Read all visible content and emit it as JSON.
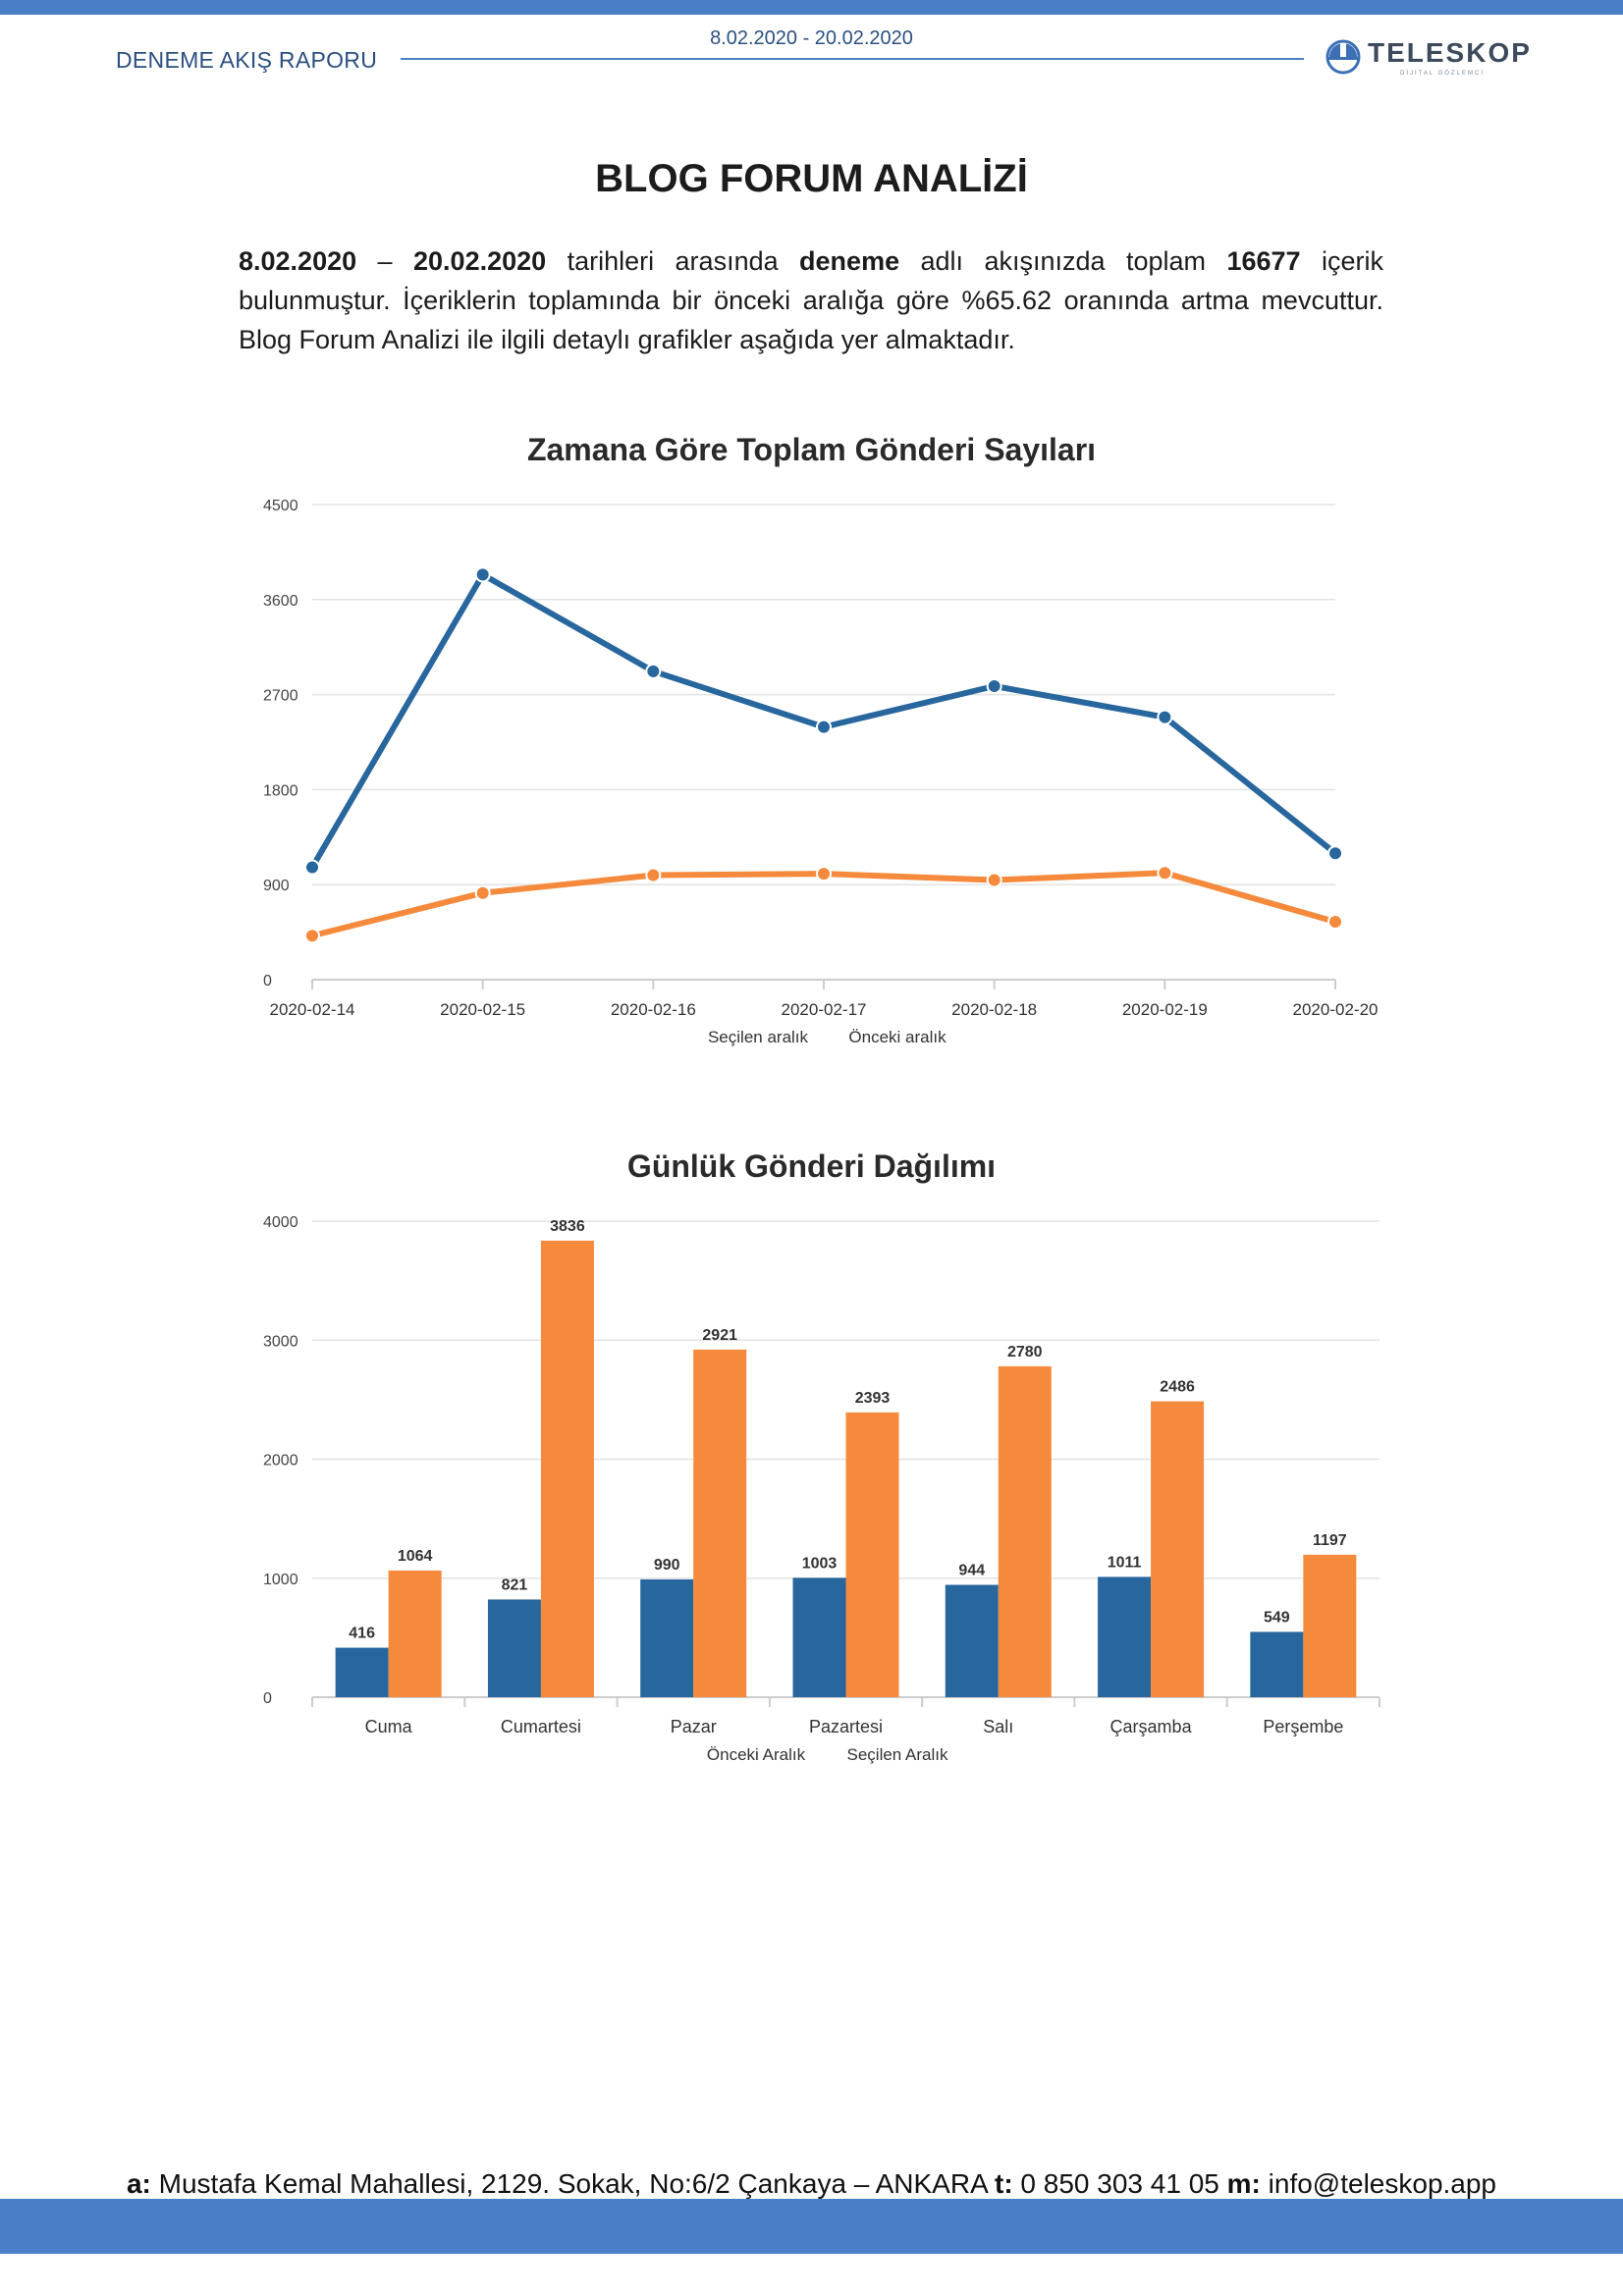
{
  "header": {
    "date_range": "8.02.2020 - 20.02.2020",
    "report_name": "DENEME AKIŞ RAPORU",
    "logo_text": "TELESKOP",
    "logo_subtext": "DİJİTAL GÖZLEMCİ"
  },
  "page": {
    "title": "BLOG FORUM ANALİZİ"
  },
  "intro": {
    "start_date": "8.02.2020",
    "dash": " – ",
    "end_date": "20.02.2020",
    "text_1": " tarihleri arasında ",
    "stream_name": "deneme",
    "text_2": " adlı akışınızda toplam ",
    "total": "16677",
    "text_3": " içerik bulunmuştur. İçeriklerin toplamında bir önceki aralığa göre %65.62 oranında artma mevcuttur. Blog Forum Analizi ile ilgili detaylı grafikler aşağıda yer almaktadır."
  },
  "chart_data": [
    {
      "type": "line",
      "title": "Zamana Göre Toplam Gönderi Sayıları",
      "x": [
        "2020-02-14",
        "2020-02-15",
        "2020-02-16",
        "2020-02-17",
        "2020-02-18",
        "2020-02-19",
        "2020-02-20"
      ],
      "y_ticks": [
        "0",
        "900",
        "1800",
        "2700",
        "3600",
        "4500"
      ],
      "ylim": [
        0,
        4500
      ],
      "grid": true,
      "legend_position": "bottom",
      "series": [
        {
          "name": "Seçilen aralık",
          "color": "#28669e",
          "values": [
            1064,
            3836,
            2921,
            2393,
            2780,
            2486,
            1197
          ]
        },
        {
          "name": "Önceki aralık",
          "color": "#f58a3c",
          "values": [
            416,
            821,
            990,
            1003,
            944,
            1011,
            549
          ]
        }
      ]
    },
    {
      "type": "bar",
      "title": "Günlük Gönderi Dağılımı",
      "categories": [
        "Cuma",
        "Cumartesi",
        "Pazar",
        "Pazartesi",
        "Salı",
        "Çarşamba",
        "Perşembe"
      ],
      "y_ticks": [
        "0",
        "1000",
        "2000",
        "3000",
        "4000"
      ],
      "ylim": [
        0,
        4000
      ],
      "grid": true,
      "legend_position": "bottom",
      "series": [
        {
          "name": "Önceki Aralık",
          "color": "#28669e",
          "values": [
            416,
            821,
            990,
            1003,
            944,
            1011,
            549
          ]
        },
        {
          "name": "Seçilen Aralık",
          "color": "#f58a3c",
          "values": [
            1064,
            3836,
            2921,
            2393,
            2780,
            2486,
            1197
          ]
        }
      ]
    }
  ],
  "footer": {
    "a_label": "a:",
    "address": " Mustafa Kemal Mahallesi, 2129. Sokak, No:6/2 Çankaya – ANKARA ",
    "t_label": "t:",
    "phone": " 0 850 303 41 05 ",
    "m_label": "m:",
    "email": " info@teleskop.app"
  }
}
